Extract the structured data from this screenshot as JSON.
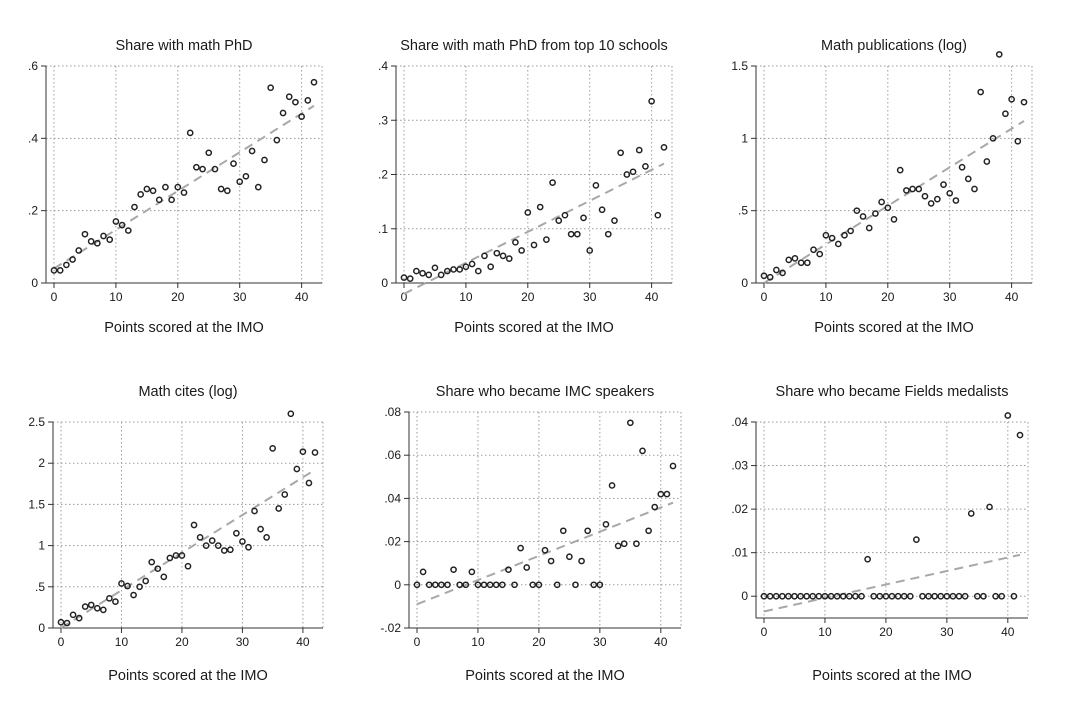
{
  "chart_data": [
    {
      "type": "scatter",
      "title": "Share with math PhD",
      "xlabel": "Points scored at the IMO",
      "ylabel": "",
      "xlim": [
        0,
        42
      ],
      "ylim": [
        0,
        0.6
      ],
      "xticks": [
        0,
        10,
        20,
        30,
        40
      ],
      "xtick_labels": [
        "0",
        "10",
        "20",
        "30",
        "40"
      ],
      "yticks": [
        0,
        0.2,
        0.4,
        0.6
      ],
      "ytick_labels": [
        "0",
        ".2",
        ".4",
        ".6"
      ],
      "grid": true,
      "x": [
        0,
        1,
        2,
        3,
        4,
        5,
        6,
        7,
        8,
        9,
        10,
        11,
        12,
        13,
        14,
        15,
        16,
        17,
        18,
        19,
        20,
        21,
        22,
        23,
        24,
        25,
        26,
        27,
        28,
        29,
        30,
        31,
        32,
        33,
        34,
        35,
        36,
        37,
        38,
        39,
        40,
        41,
        42
      ],
      "y": [
        0.035,
        0.035,
        0.05,
        0.065,
        0.09,
        0.135,
        0.115,
        0.11,
        0.13,
        0.12,
        0.17,
        0.16,
        0.145,
        0.21,
        0.245,
        0.26,
        0.255,
        0.23,
        0.265,
        0.23,
        0.265,
        0.25,
        0.415,
        0.32,
        0.315,
        0.36,
        0.315,
        0.26,
        0.255,
        0.33,
        0.28,
        0.295,
        0.365,
        0.265,
        0.34,
        0.54,
        0.395,
        0.47,
        0.515,
        0.5,
        0.46,
        0.505,
        0.555
      ],
      "fit_line": {
        "x": [
          0,
          42
        ],
        "y": [
          0.04,
          0.49
        ]
      }
    },
    {
      "type": "scatter",
      "title": "Share with math PhD from top 10 schools",
      "xlabel": "Points scored at the IMO",
      "ylabel": "",
      "xlim": [
        0,
        42
      ],
      "ylim": [
        0,
        0.4
      ],
      "xticks": [
        0,
        10,
        20,
        30,
        40
      ],
      "xtick_labels": [
        "0",
        "10",
        "20",
        "30",
        "40"
      ],
      "yticks": [
        0,
        0.1,
        0.2,
        0.3,
        0.4
      ],
      "ytick_labels": [
        "0",
        ".1",
        ".2",
        ".3",
        ".4"
      ],
      "grid": true,
      "x": [
        0,
        1,
        2,
        3,
        4,
        5,
        6,
        7,
        8,
        9,
        10,
        11,
        12,
        13,
        14,
        15,
        16,
        17,
        18,
        19,
        20,
        21,
        22,
        23,
        24,
        25,
        26,
        27,
        28,
        29,
        30,
        31,
        32,
        33,
        34,
        35,
        36,
        37,
        38,
        39,
        40,
        41,
        42
      ],
      "y": [
        0.01,
        0.008,
        0.022,
        0.018,
        0.015,
        0.028,
        0.015,
        0.022,
        0.025,
        0.025,
        0.03,
        0.035,
        0.022,
        0.05,
        0.03,
        0.055,
        0.05,
        0.045,
        0.075,
        0.06,
        0.13,
        0.07,
        0.14,
        0.08,
        0.185,
        0.115,
        0.125,
        0.09,
        0.09,
        0.12,
        0.06,
        0.18,
        0.135,
        0.09,
        0.115,
        0.24,
        0.2,
        0.205,
        0.245,
        0.215,
        0.335,
        0.125,
        0.25
      ],
      "fit_line": {
        "x": [
          0,
          42
        ],
        "y": [
          -0.02,
          0.22
        ]
      }
    },
    {
      "type": "scatter",
      "title": "Math publications (log)",
      "xlabel": "Points scored at the IMO",
      "ylabel": "",
      "xlim": [
        0,
        42
      ],
      "ylim": [
        0,
        1.5
      ],
      "xticks": [
        0,
        10,
        20,
        30,
        40
      ],
      "xtick_labels": [
        "0",
        "10",
        "20",
        "30",
        "40"
      ],
      "yticks": [
        0,
        0.5,
        1,
        1.5
      ],
      "ytick_labels": [
        "0",
        ".5",
        "1",
        "1.5"
      ],
      "grid": true,
      "x": [
        0,
        1,
        2,
        3,
        4,
        5,
        6,
        7,
        8,
        9,
        10,
        11,
        12,
        13,
        14,
        15,
        16,
        17,
        18,
        19,
        20,
        21,
        22,
        23,
        24,
        25,
        26,
        27,
        28,
        29,
        30,
        31,
        32,
        33,
        34,
        35,
        36,
        37,
        38,
        39,
        40,
        41,
        42
      ],
      "y": [
        0.05,
        0.04,
        0.09,
        0.07,
        0.16,
        0.17,
        0.14,
        0.14,
        0.23,
        0.2,
        0.33,
        0.31,
        0.27,
        0.33,
        0.36,
        0.5,
        0.46,
        0.38,
        0.48,
        0.56,
        0.52,
        0.44,
        0.78,
        0.64,
        0.65,
        0.65,
        0.6,
        0.55,
        0.58,
        0.68,
        0.62,
        0.57,
        0.8,
        0.72,
        0.65,
        1.32,
        0.84,
        1.0,
        1.58,
        1.17,
        1.27,
        0.98,
        1.25
      ],
      "fit_line": {
        "x": [
          0,
          42
        ],
        "y": [
          0.0,
          1.12
        ]
      }
    },
    {
      "type": "scatter",
      "title": "Math cites (log)",
      "xlabel": "Points scored at the IMO",
      "ylabel": "",
      "xlim": [
        0,
        42
      ],
      "ylim": [
        0,
        2.5
      ],
      "xticks": [
        0,
        10,
        20,
        30,
        40
      ],
      "xtick_labels": [
        "0",
        "10",
        "20",
        "30",
        "40"
      ],
      "yticks": [
        0,
        0.5,
        1,
        1.5,
        2,
        2.5
      ],
      "ytick_labels": [
        "0",
        ".5",
        "1",
        "1.5",
        "2",
        "2.5"
      ],
      "grid": true,
      "x": [
        0,
        1,
        2,
        3,
        4,
        5,
        6,
        7,
        8,
        9,
        10,
        11,
        12,
        13,
        14,
        15,
        16,
        17,
        18,
        19,
        20,
        21,
        22,
        23,
        24,
        25,
        26,
        27,
        28,
        29,
        30,
        31,
        32,
        33,
        34,
        35,
        36,
        37,
        38,
        39,
        40,
        41,
        42
      ],
      "y": [
        0.07,
        0.06,
        0.16,
        0.12,
        0.26,
        0.28,
        0.24,
        0.22,
        0.36,
        0.32,
        0.54,
        0.51,
        0.4,
        0.5,
        0.57,
        0.8,
        0.72,
        0.62,
        0.85,
        0.88,
        0.88,
        0.75,
        1.25,
        1.1,
        1.0,
        1.06,
        1.0,
        0.94,
        0.95,
        1.15,
        1.05,
        0.98,
        1.42,
        1.2,
        1.1,
        2.18,
        1.45,
        1.62,
        2.6,
        1.93,
        2.14,
        1.76,
        2.13
      ],
      "fit_line": {
        "x": [
          0,
          42
        ],
        "y": [
          0.0,
          1.92
        ]
      }
    },
    {
      "type": "scatter",
      "title": "Share who became IMC speakers",
      "xlabel": "Points scored at the IMO",
      "ylabel": "",
      "xlim": [
        0,
        42
      ],
      "ylim": [
        -0.02,
        0.08
      ],
      "xticks": [
        0,
        10,
        20,
        30,
        40
      ],
      "xtick_labels": [
        "0",
        "10",
        "20",
        "30",
        "40"
      ],
      "yticks": [
        -0.02,
        0,
        0.02,
        0.04,
        0.06,
        0.08
      ],
      "ytick_labels": [
        "-.02",
        "0",
        ".02",
        ".04",
        ".06",
        ".08"
      ],
      "grid": true,
      "x": [
        0,
        1,
        2,
        3,
        4,
        5,
        6,
        7,
        8,
        9,
        10,
        11,
        12,
        13,
        14,
        15,
        16,
        17,
        18,
        19,
        20,
        21,
        22,
        23,
        24,
        25,
        26,
        27,
        28,
        29,
        30,
        31,
        32,
        33,
        34,
        35,
        36,
        37,
        38,
        39,
        40,
        41,
        42
      ],
      "y": [
        0,
        0.006,
        0,
        0,
        0,
        0,
        0.007,
        0,
        0,
        0.006,
        0,
        0,
        0,
        0,
        0,
        0.007,
        0,
        0.017,
        0.008,
        0,
        0,
        0.016,
        0.011,
        0,
        0.025,
        0.013,
        0,
        0.011,
        0.025,
        0,
        0,
        0.028,
        0.046,
        0.018,
        0.019,
        0.075,
        0.019,
        0.062,
        0.025,
        0.036,
        0.042,
        0.042,
        0.055
      ],
      "fit_line": {
        "x": [
          0,
          42
        ],
        "y": [
          -0.009,
          0.038
        ]
      }
    },
    {
      "type": "scatter",
      "title": "Share who became Fields medalists",
      "xlabel": "Points scored at the IMO",
      "ylabel": "",
      "xlim": [
        0,
        42
      ],
      "ylim": [
        -0.005,
        0.04
      ],
      "xticks": [
        0,
        10,
        20,
        30,
        40
      ],
      "xtick_labels": [
        "0",
        "10",
        "20",
        "30",
        "40"
      ],
      "yticks": [
        0,
        0.01,
        0.02,
        0.03,
        0.04
      ],
      "ytick_labels": [
        "0",
        ".01",
        ".02",
        ".03",
        ".04"
      ],
      "grid": true,
      "x": [
        0,
        1,
        2,
        3,
        4,
        5,
        6,
        7,
        8,
        9,
        10,
        11,
        12,
        13,
        14,
        15,
        16,
        17,
        18,
        19,
        20,
        21,
        22,
        23,
        24,
        25,
        26,
        27,
        28,
        29,
        30,
        31,
        32,
        33,
        34,
        35,
        36,
        37,
        38,
        39,
        40,
        41,
        42
      ],
      "y": [
        0,
        0,
        0,
        0,
        0,
        0,
        0,
        0,
        0,
        0,
        0,
        0,
        0,
        0,
        0,
        0,
        0,
        0.0085,
        0,
        0,
        0,
        0,
        0,
        0,
        0,
        0.013,
        0,
        0,
        0,
        0,
        0,
        0,
        0,
        0,
        0.019,
        0,
        0,
        0.0205,
        0,
        0,
        0.0415,
        0,
        0.037
      ],
      "fit_line": {
        "x": [
          0,
          42
        ],
        "y": [
          -0.0035,
          0.0095
        ]
      }
    }
  ]
}
